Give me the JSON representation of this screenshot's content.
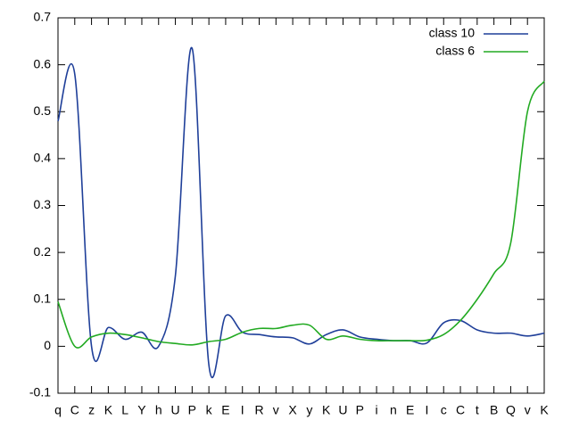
{
  "chart_data": {
    "type": "line",
    "categories": [
      "q",
      "C",
      "z",
      "K",
      "L",
      "Y",
      "h",
      "U",
      "P",
      "k",
      "E",
      "I",
      "R",
      "v",
      "X",
      "y",
      "K",
      "U",
      "P",
      "i",
      "n",
      "E",
      "I",
      "c",
      "C",
      "t",
      "B",
      "Q",
      "v",
      "K"
    ],
    "series": [
      {
        "name": "class 10",
        "color": "#1f3f99",
        "values": [
          0.48,
          0.58,
          0.0,
          0.04,
          0.015,
          0.03,
          0.0,
          0.15,
          0.635,
          -0.04,
          0.065,
          0.03,
          0.025,
          0.02,
          0.018,
          0.005,
          0.025,
          0.035,
          0.02,
          0.015,
          0.012,
          0.012,
          0.007,
          0.05,
          0.055,
          0.035,
          0.028,
          0.028,
          0.022,
          0.028
        ]
      },
      {
        "name": "class 6",
        "color": "#22aa22",
        "values": [
          0.095,
          0.0,
          0.02,
          0.028,
          0.025,
          0.018,
          0.01,
          0.006,
          0.003,
          0.01,
          0.015,
          0.03,
          0.038,
          0.038,
          0.045,
          0.045,
          0.015,
          0.022,
          0.015,
          0.012,
          0.012,
          0.012,
          0.013,
          0.025,
          0.055,
          0.1,
          0.155,
          0.22,
          0.5,
          0.565
        ]
      }
    ],
    "ylim": [
      -0.1,
      0.7
    ],
    "yticks": [
      -0.1,
      0,
      0.1,
      0.2,
      0.3,
      0.4,
      0.5,
      0.6,
      0.7
    ],
    "legend": "top right"
  }
}
